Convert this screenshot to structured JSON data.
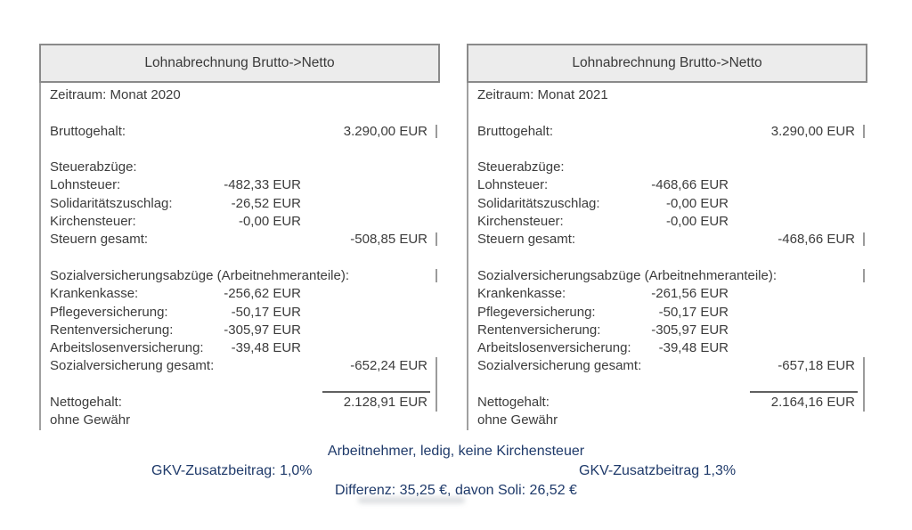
{
  "colors": {
    "accent_blue": "#1f3a6a",
    "table_text": "#3c3c3c",
    "header_bg": "#ececec",
    "header_border": "#8a8a8a",
    "line_gray": "#a0a0a0"
  },
  "tables": [
    {
      "title": "Lohnabrechnung Brutto->Netto",
      "rows": [
        {
          "label": "Zeitraum: Monat 2020"
        },
        {},
        {
          "label": "Bruttogehalt:",
          "total": "3.290,00 EUR",
          "tick": "short"
        },
        {},
        {
          "label": "Steuerabzüge:"
        },
        {
          "label": "Lohnsteuer:",
          "amount": "-482,33 EUR"
        },
        {
          "label": "Solidaritätszuschlag:",
          "amount": "-26,52 EUR"
        },
        {
          "label": "Kirchensteuer:",
          "amount": "-0,00 EUR"
        },
        {
          "label": "Steuern gesamt:",
          "total": "-508,85 EUR",
          "tick": "short"
        },
        {},
        {
          "label": "Sozialversicherungsabzüge (Arbeitnehmeranteile):",
          "tick": "short"
        },
        {
          "label": "Krankenkasse:",
          "amount": "-256,62 EUR"
        },
        {
          "label": "Pflegeversicherung:",
          "amount": "-50,17 EUR"
        },
        {
          "label": "Rentenversicherung:",
          "amount": "-305,97 EUR"
        },
        {
          "label": "Arbeitslosenversicherung:",
          "amount": "-39,48 EUR"
        },
        {
          "label": "Sozialversicherung gesamt:",
          "total": "-652,24 EUR",
          "tick": "tall"
        },
        {
          "rule": true,
          "tick": "tall"
        },
        {
          "label": "Nettogehalt:",
          "total": "2.128,91 EUR",
          "tick": "tall"
        },
        {
          "label": "ohne Gewähr"
        }
      ]
    },
    {
      "title": "Lohnabrechnung Brutto->Netto",
      "rows": [
        {
          "label": "Zeitraum: Monat 2021"
        },
        {},
        {
          "label": "Bruttogehalt:",
          "total": "3.290,00 EUR",
          "tick": "short"
        },
        {},
        {
          "label": "Steuerabzüge:"
        },
        {
          "label": "Lohnsteuer:",
          "amount": "-468,66 EUR"
        },
        {
          "label": "Solidaritätszuschlag:",
          "amount": "-0,00 EUR"
        },
        {
          "label": "Kirchensteuer:",
          "amount": "-0,00 EUR"
        },
        {
          "label": "Steuern gesamt:",
          "total": "-468,66 EUR",
          "tick": "short"
        },
        {},
        {
          "label": "Sozialversicherungsabzüge (Arbeitnehmeranteile):",
          "tick": "short"
        },
        {
          "label": "Krankenkasse:",
          "amount": "-261,56 EUR"
        },
        {
          "label": "Pflegeversicherung:",
          "amount": "-50,17 EUR"
        },
        {
          "label": "Rentenversicherung:",
          "amount": "-305,97 EUR"
        },
        {
          "label": "Arbeitslosenversicherung:",
          "amount": "-39,48 EUR"
        },
        {
          "label": "Sozialversicherung gesamt:",
          "total": "-657,18 EUR",
          "tick": "tall"
        },
        {
          "rule": true,
          "tick": "tall"
        },
        {
          "label": "Nettogehalt:",
          "total": "2.164,16 EUR",
          "tick": "tall"
        },
        {
          "label": "ohne Gewähr"
        }
      ]
    }
  ],
  "footer": {
    "employee_status": "Arbeitnehmer, ledig, keine Kirchensteuer",
    "gkv_left": "GKV-Zusatzbeitrag: 1,0%",
    "gkv_right": "GKV-Zusatzbeitrag 1,3%",
    "difference": "Differenz: 35,25 €, davon Soli: 26,52 €"
  }
}
